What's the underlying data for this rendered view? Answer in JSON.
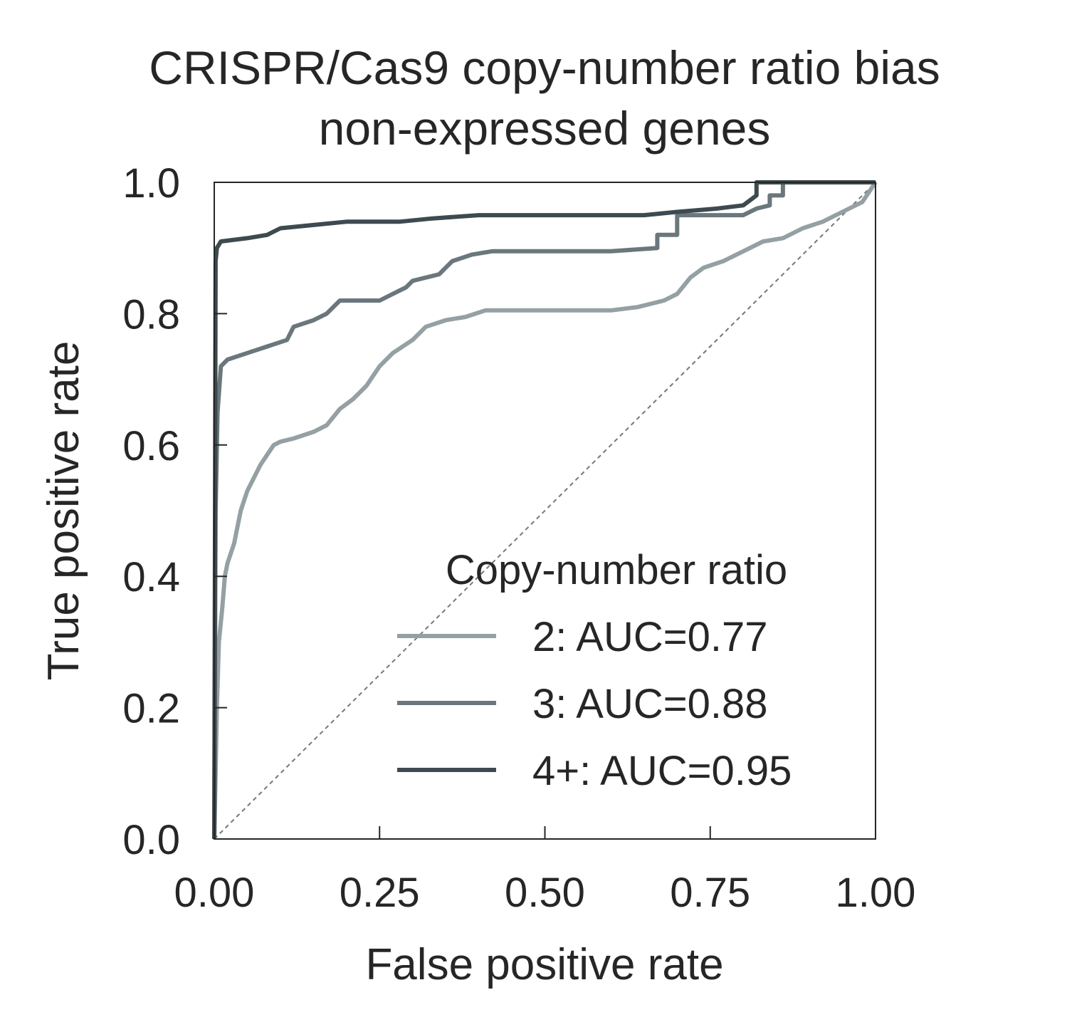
{
  "chart_data": {
    "type": "line",
    "title": "CRISPR/Cas9 copy-number ratio bias",
    "subtitle": "non-expressed genes",
    "xlabel": "False positive rate",
    "ylabel": "True positive rate",
    "xlim": [
      0,
      1
    ],
    "ylim": [
      0,
      1
    ],
    "x_ticks": [
      "0.00",
      "0.25",
      "0.50",
      "0.75",
      "1.00"
    ],
    "y_ticks": [
      "0.0",
      "0.2",
      "0.4",
      "0.6",
      "0.8",
      "1.0"
    ],
    "grid": false,
    "legend": {
      "title": "Copy-number ratio",
      "placement": "lower-right",
      "entries": [
        "2: AUC=0.77",
        "3: AUC=0.88",
        "4+: AUC=0.95"
      ]
    },
    "colors": {
      "series_2": "#95a0a4",
      "series_3": "#6a777c",
      "series_4": "#3d4a50",
      "diagonal": "#777777",
      "axes": "#262626"
    },
    "series": [
      {
        "name": "2: AUC=0.77",
        "color": "#95a0a4",
        "points": [
          [
            0,
            0
          ],
          [
            0.002,
            0.1
          ],
          [
            0.004,
            0.2
          ],
          [
            0.007,
            0.3
          ],
          [
            0.012,
            0.35
          ],
          [
            0.016,
            0.4
          ],
          [
            0.02,
            0.42
          ],
          [
            0.03,
            0.45
          ],
          [
            0.04,
            0.5
          ],
          [
            0.05,
            0.53
          ],
          [
            0.06,
            0.55
          ],
          [
            0.07,
            0.57
          ],
          [
            0.08,
            0.585
          ],
          [
            0.09,
            0.6
          ],
          [
            0.1,
            0.605
          ],
          [
            0.12,
            0.61
          ],
          [
            0.15,
            0.62
          ],
          [
            0.17,
            0.63
          ],
          [
            0.19,
            0.655
          ],
          [
            0.21,
            0.67
          ],
          [
            0.23,
            0.69
          ],
          [
            0.25,
            0.72
          ],
          [
            0.27,
            0.74
          ],
          [
            0.3,
            0.76
          ],
          [
            0.32,
            0.78
          ],
          [
            0.35,
            0.79
          ],
          [
            0.38,
            0.795
          ],
          [
            0.41,
            0.805
          ],
          [
            0.5,
            0.805
          ],
          [
            0.6,
            0.805
          ],
          [
            0.64,
            0.81
          ],
          [
            0.68,
            0.82
          ],
          [
            0.7,
            0.83
          ],
          [
            0.72,
            0.855
          ],
          [
            0.74,
            0.87
          ],
          [
            0.77,
            0.88
          ],
          [
            0.8,
            0.895
          ],
          [
            0.83,
            0.91
          ],
          [
            0.86,
            0.915
          ],
          [
            0.89,
            0.93
          ],
          [
            0.92,
            0.94
          ],
          [
            0.95,
            0.955
          ],
          [
            0.98,
            0.97
          ],
          [
            1.0,
            1.0
          ]
        ]
      },
      {
        "name": "3: AUC=0.88",
        "color": "#6a777c",
        "points": [
          [
            0,
            0
          ],
          [
            0.002,
            0.5
          ],
          [
            0.005,
            0.65
          ],
          [
            0.01,
            0.72
          ],
          [
            0.02,
            0.73
          ],
          [
            0.05,
            0.74
          ],
          [
            0.08,
            0.75
          ],
          [
            0.11,
            0.76
          ],
          [
            0.12,
            0.78
          ],
          [
            0.15,
            0.79
          ],
          [
            0.17,
            0.8
          ],
          [
            0.19,
            0.82
          ],
          [
            0.25,
            0.82
          ],
          [
            0.27,
            0.83
          ],
          [
            0.29,
            0.84
          ],
          [
            0.3,
            0.85
          ],
          [
            0.34,
            0.86
          ],
          [
            0.36,
            0.88
          ],
          [
            0.39,
            0.89
          ],
          [
            0.42,
            0.895
          ],
          [
            0.5,
            0.895
          ],
          [
            0.6,
            0.895
          ],
          [
            0.67,
            0.9
          ],
          [
            0.67,
            0.92
          ],
          [
            0.7,
            0.92
          ],
          [
            0.7,
            0.95
          ],
          [
            0.8,
            0.95
          ],
          [
            0.82,
            0.96
          ],
          [
            0.84,
            0.965
          ],
          [
            0.84,
            0.98
          ],
          [
            0.86,
            0.98
          ],
          [
            0.86,
            1.0
          ],
          [
            1.0,
            1.0
          ]
        ]
      },
      {
        "name": "4+: AUC=0.95",
        "color": "#3d4a50",
        "points": [
          [
            0,
            0
          ],
          [
            0.002,
            0.88
          ],
          [
            0.004,
            0.9
          ],
          [
            0.01,
            0.91
          ],
          [
            0.05,
            0.915
          ],
          [
            0.08,
            0.92
          ],
          [
            0.1,
            0.93
          ],
          [
            0.15,
            0.935
          ],
          [
            0.2,
            0.94
          ],
          [
            0.28,
            0.94
          ],
          [
            0.33,
            0.945
          ],
          [
            0.4,
            0.95
          ],
          [
            0.55,
            0.95
          ],
          [
            0.65,
            0.95
          ],
          [
            0.7,
            0.955
          ],
          [
            0.76,
            0.96
          ],
          [
            0.8,
            0.965
          ],
          [
            0.82,
            0.98
          ],
          [
            0.82,
            1.0
          ],
          [
            1.0,
            1.0
          ]
        ]
      }
    ]
  }
}
